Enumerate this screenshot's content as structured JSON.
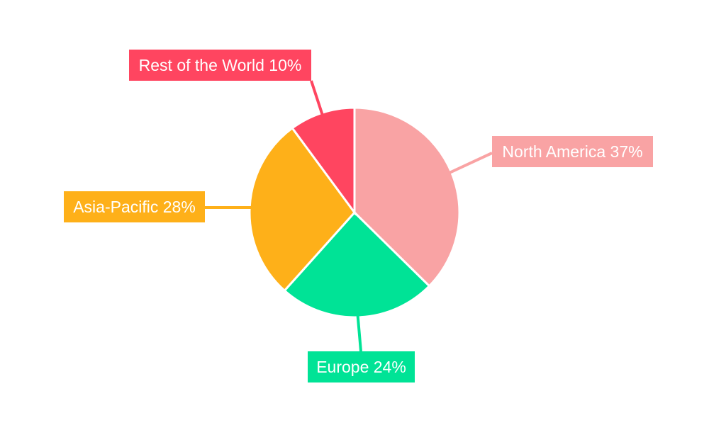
{
  "chart_data": {
    "type": "pie",
    "categories": [
      "North America",
      "Europe",
      "Asia-Pacific",
      "Rest of the World"
    ],
    "values": [
      37,
      24,
      28,
      10
    ],
    "labels": [
      "North America 37%",
      "Europe 24%",
      "Asia-Pacific 28%",
      "Rest of the World 10%"
    ],
    "colors": [
      "#F9A3A4",
      "#00E396",
      "#FEB019",
      "#FF4560"
    ],
    "start": "top",
    "direction": "clockwise",
    "legend": "none"
  }
}
